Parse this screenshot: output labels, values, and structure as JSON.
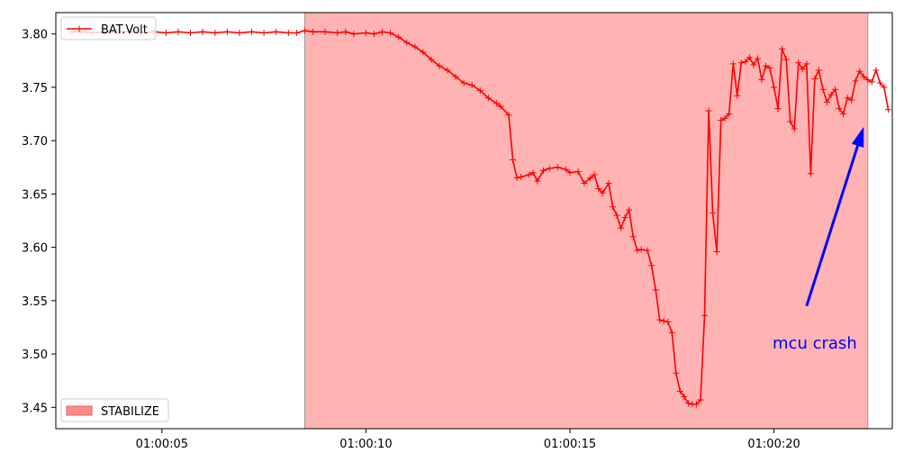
{
  "chart_data": {
    "type": "line",
    "x_axis": {
      "kind": "time",
      "range": [
        "01:00:02.4",
        "01:00:22.9"
      ],
      "ticks": [
        {
          "t": "01:00:05",
          "label": "01:00:05"
        },
        {
          "t": "01:00:10",
          "label": "01:00:10"
        },
        {
          "t": "01:00:15",
          "label": "01:00:15"
        },
        {
          "t": "01:00:20",
          "label": "01:00:20"
        }
      ]
    },
    "y_axis": {
      "range": [
        3.43,
        3.82
      ],
      "ticks": [
        {
          "v": 3.45,
          "label": "3.45"
        },
        {
          "v": 3.5,
          "label": "3.50"
        },
        {
          "v": 3.55,
          "label": "3.55"
        },
        {
          "v": 3.6,
          "label": "3.60"
        },
        {
          "v": 3.65,
          "label": "3.65"
        },
        {
          "v": 3.7,
          "label": "3.70"
        },
        {
          "v": 3.75,
          "label": "3.75"
        },
        {
          "v": 3.8,
          "label": "3.80"
        }
      ]
    },
    "grid": false,
    "series": [
      {
        "name": "BAT.Volt",
        "color": "#ff0000",
        "marker": "+",
        "points": [
          [
            "01:00:02.8",
            3.802
          ],
          [
            "01:00:03.0",
            3.802
          ],
          [
            "01:00:03.3",
            3.801
          ],
          [
            "01:00:03.6",
            3.802
          ],
          [
            "01:00:03.9",
            3.802
          ],
          [
            "01:00:04.2",
            3.802
          ],
          [
            "01:00:04.5",
            3.801
          ],
          [
            "01:00:04.8",
            3.802
          ],
          [
            "01:00:05.1",
            3.801
          ],
          [
            "01:00:05.4",
            3.802
          ],
          [
            "01:00:05.7",
            3.801
          ],
          [
            "01:00:06.0",
            3.802
          ],
          [
            "01:00:06.3",
            3.801
          ],
          [
            "01:00:06.6",
            3.802
          ],
          [
            "01:00:06.9",
            3.801
          ],
          [
            "01:00:07.2",
            3.802
          ],
          [
            "01:00:07.5",
            3.801
          ],
          [
            "01:00:07.8",
            3.802
          ],
          [
            "01:00:08.1",
            3.801
          ],
          [
            "01:00:08.3",
            3.801
          ],
          [
            "01:00:08.5",
            3.803
          ],
          [
            "01:00:08.7",
            3.802
          ],
          [
            "01:00:09.0",
            3.802
          ],
          [
            "01:00:09.3",
            3.801
          ],
          [
            "01:00:09.5",
            3.802
          ],
          [
            "01:00:09.7",
            3.8
          ],
          [
            "01:00:10.0",
            3.801
          ],
          [
            "01:00:10.2",
            3.8
          ],
          [
            "01:00:10.4",
            3.802
          ],
          [
            "01:00:10.6",
            3.801
          ],
          [
            "01:00:10.8",
            3.797
          ],
          [
            "01:00:11.0",
            3.792
          ],
          [
            "01:00:11.2",
            3.788
          ],
          [
            "01:00:11.4",
            3.783
          ],
          [
            "01:00:11.6",
            3.776
          ],
          [
            "01:00:11.8",
            3.77
          ],
          [
            "01:00:12.0",
            3.766
          ],
          [
            "01:00:12.2",
            3.76
          ],
          [
            "01:00:12.4",
            3.754
          ],
          [
            "01:00:12.6",
            3.752
          ],
          [
            "01:00:12.8",
            3.747
          ],
          [
            "01:00:13.0",
            3.74
          ],
          [
            "01:00:13.2",
            3.735
          ],
          [
            "01:00:13.3",
            3.732
          ],
          [
            "01:00:13.5",
            3.724
          ],
          [
            "01:00:13.6",
            3.682
          ],
          [
            "01:00:13.7",
            3.665
          ],
          [
            "01:00:13.8",
            3.666
          ],
          [
            "01:00:14.0",
            3.668
          ],
          [
            "01:00:14.1",
            3.67
          ],
          [
            "01:00:14.2",
            3.662
          ],
          [
            "01:00:14.35",
            3.672
          ],
          [
            "01:00:14.5",
            3.674
          ],
          [
            "01:00:14.7",
            3.675
          ],
          [
            "01:00:14.9",
            3.673
          ],
          [
            "01:00:15.0",
            3.67
          ],
          [
            "01:00:15.2",
            3.671
          ],
          [
            "01:00:15.35",
            3.66
          ],
          [
            "01:00:15.5",
            3.665
          ],
          [
            "01:00:15.6",
            3.668
          ],
          [
            "01:00:15.7",
            3.655
          ],
          [
            "01:00:15.8",
            3.651
          ],
          [
            "01:00:15.95",
            3.66
          ],
          [
            "01:00:16.05",
            3.638
          ],
          [
            "01:00:16.15",
            3.63
          ],
          [
            "01:00:16.25",
            3.618
          ],
          [
            "01:00:16.35",
            3.628
          ],
          [
            "01:00:16.45",
            3.635
          ],
          [
            "01:00:16.55",
            3.61
          ],
          [
            "01:00:16.65",
            3.597
          ],
          [
            "01:00:16.75",
            3.598
          ],
          [
            "01:00:16.9",
            3.597
          ],
          [
            "01:00:17.0",
            3.583
          ],
          [
            "01:00:17.1",
            3.56
          ],
          [
            "01:00:17.2",
            3.532
          ],
          [
            "01:00:17.3",
            3.531
          ],
          [
            "01:00:17.4",
            3.53
          ],
          [
            "01:00:17.5",
            3.52
          ],
          [
            "01:00:17.6",
            3.482
          ],
          [
            "01:00:17.7",
            3.465
          ],
          [
            "01:00:17.8",
            3.46
          ],
          [
            "01:00:17.9",
            3.454
          ],
          [
            "01:00:18.0",
            3.453
          ],
          [
            "01:00:18.1",
            3.453
          ],
          [
            "01:00:18.2",
            3.457
          ],
          [
            "01:00:18.3",
            3.536
          ],
          [
            "01:00:18.4",
            3.728
          ],
          [
            "01:00:18.5",
            3.632
          ],
          [
            "01:00:18.6",
            3.596
          ],
          [
            "01:00:18.7",
            3.719
          ],
          [
            "01:00:18.8",
            3.721
          ],
          [
            "01:00:18.9",
            3.725
          ],
          [
            "01:00:19.0",
            3.772
          ],
          [
            "01:00:19.1",
            3.742
          ],
          [
            "01:00:19.2",
            3.773
          ],
          [
            "01:00:19.3",
            3.774
          ],
          [
            "01:00:19.4",
            3.778
          ],
          [
            "01:00:19.5",
            3.771
          ],
          [
            "01:00:19.6",
            3.777
          ],
          [
            "01:00:19.7",
            3.757
          ],
          [
            "01:00:19.8",
            3.77
          ],
          [
            "01:00:19.9",
            3.768
          ],
          [
            "01:00:20.0",
            3.75
          ],
          [
            "01:00:20.1",
            3.73
          ],
          [
            "01:00:20.2",
            3.786
          ],
          [
            "01:00:20.3",
            3.776
          ],
          [
            "01:00:20.4",
            3.718
          ],
          [
            "01:00:20.5",
            3.711
          ],
          [
            "01:00:20.6",
            3.773
          ],
          [
            "01:00:20.7",
            3.767
          ],
          [
            "01:00:20.8",
            3.772
          ],
          [
            "01:00:20.9",
            3.669
          ],
          [
            "01:00:21.0",
            3.758
          ],
          [
            "01:00:21.1",
            3.766
          ],
          [
            "01:00:21.2",
            3.748
          ],
          [
            "01:00:21.3",
            3.736
          ],
          [
            "01:00:21.4",
            3.743
          ],
          [
            "01:00:21.5",
            3.748
          ],
          [
            "01:00:21.6",
            3.73
          ],
          [
            "01:00:21.7",
            3.725
          ],
          [
            "01:00:21.8",
            3.74
          ],
          [
            "01:00:21.9",
            3.738
          ],
          [
            "01:00:22.0",
            3.756
          ],
          [
            "01:00:22.1",
            3.765
          ],
          [
            "01:00:22.2",
            3.76
          ],
          [
            "01:00:22.3",
            3.757
          ],
          [
            "01:00:22.4",
            3.755
          ],
          [
            "01:00:22.5",
            3.766
          ],
          [
            "01:00:22.6",
            3.754
          ],
          [
            "01:00:22.7",
            3.75
          ],
          [
            "01:00:22.8",
            3.729
          ]
        ]
      }
    ],
    "spans": [
      {
        "name": "STABILIZE",
        "start": "01:00:08.5",
        "end": "01:00:22.3",
        "color": "#ff8080",
        "alpha": 0.6
      }
    ],
    "legends": [
      {
        "placement": "upper-left",
        "entries": [
          {
            "label": "BAT.Volt",
            "kind": "line",
            "color": "#ff0000",
            "marker": "+"
          }
        ]
      },
      {
        "placement": "lower-left",
        "entries": [
          {
            "label": "STABILIZE",
            "kind": "patch",
            "color": "#ff8080"
          }
        ]
      }
    ],
    "annotations": [
      {
        "text": "mcu crash",
        "color": "#0000ff",
        "text_at": [
          "01:00:21.0",
          3.505
        ],
        "arrow_from": [
          "01:00:20.8",
          3.545
        ],
        "arrow_to": [
          "01:00:22.2",
          3.713
        ]
      }
    ]
  }
}
